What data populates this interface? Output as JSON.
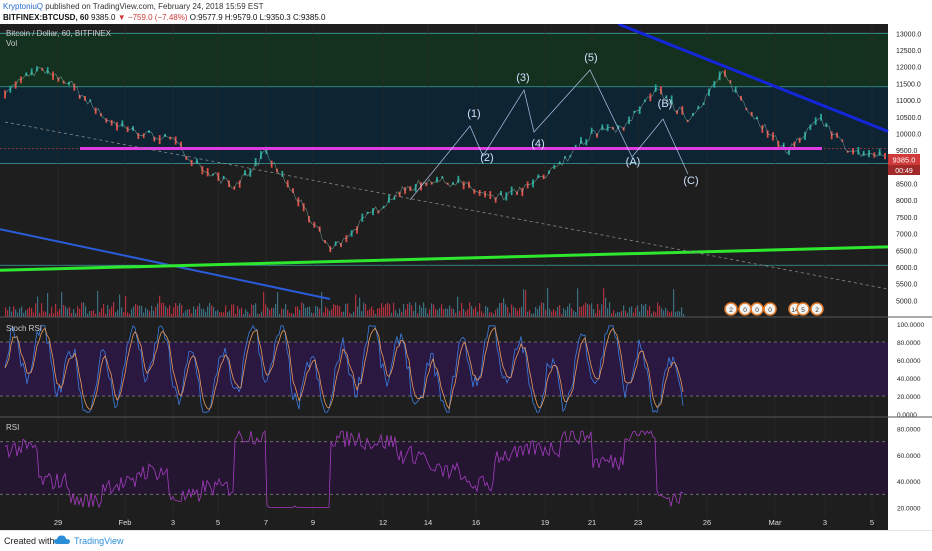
{
  "header": {
    "author": "KryptoniuQ",
    "published": "published on TradingView.com, February 24, 2018 15:59 EST",
    "symbol": "BITFINEX:BTCUSD, 60",
    "last": "9385.0",
    "change": "−759.0 (−7.48%)",
    "open": "O:9577.9",
    "high": "H:9579.0",
    "low": "L:9350.3",
    "close": "C:9385.0"
  },
  "footer": {
    "created_with": "Created with",
    "brand": "TradingView"
  },
  "colors": {
    "background": "#1e1e1e",
    "green_zone": "#14301e",
    "blue_zone": "#0e2433",
    "stoch_band": "#2b1840",
    "rsi_band": "#241630",
    "blue_trend": "#1426d9",
    "blue_trend_lower": "#2a5bd8",
    "green_trend": "#2ee82e",
    "magenta_line": "#e03be0",
    "price_label": "#d13a3a",
    "stoch_k": "#3b7de0",
    "stoch_d": "#e89a5a",
    "rsi_line": "#a33cc0"
  },
  "chart_data": [
    {
      "type": "line",
      "panel": "price",
      "title": "Bitcoin / Dollar, 60, BITFINEX",
      "subtitle": "Vol",
      "y_ticks": [
        5000,
        5500,
        6000,
        6500,
        7000,
        7500,
        8000,
        8500,
        9000,
        9500,
        10000,
        10500,
        11000,
        11500,
        12000,
        12500,
        13000
      ],
      "ylim": [
        4500,
        13100
      ],
      "x_ticks": [
        "29",
        "Feb",
        "3",
        "5",
        "7",
        "9",
        "12",
        "14",
        "16",
        "19",
        "21",
        "23",
        "26",
        "Mar",
        "3",
        "5"
      ],
      "x": [
        0,
        1,
        2,
        3,
        4,
        5,
        6,
        7,
        8,
        9,
        10,
        11,
        12,
        13,
        14,
        15,
        16,
        17,
        18,
        19,
        20,
        21,
        22,
        23,
        24,
        25,
        26,
        27
      ],
      "series": [
        {
          "values": [
            11300,
            11900,
            11500,
            10500,
            10000,
            9900,
            9000,
            8400,
            9400,
            8000,
            6500,
            7400,
            8200,
            8600,
            8500,
            8000,
            8400,
            9000,
            10000,
            10200,
            11300,
            10400,
            11800,
            10500,
            9500,
            10400,
            9385,
            9385
          ]
        }
      ],
      "current_price": "9385.0",
      "current_price_sub": "00:49",
      "wave_labels": [
        "(1)",
        "(2)",
        "(3)",
        "(4)",
        "(5)",
        "(A)",
        "(B)",
        "(C)"
      ],
      "horizontal_lines": [
        13000,
        11400,
        9550,
        9100,
        6050
      ],
      "magenta_level": 9550,
      "trendlines": [
        {
          "name": "blue-trendline",
          "from": {
            "x": 9,
            "y": 13100
          },
          "to": {
            "x": 27,
            "y": 10000
          }
        },
        {
          "name": "green-trendline",
          "from": {
            "x": 0,
            "y": 5900
          },
          "to": {
            "x": 27,
            "y": 6600
          }
        }
      ],
      "event_bubbles": [
        "2",
        "0",
        "0",
        "0",
        "14",
        "5",
        "2"
      ]
    },
    {
      "type": "line",
      "panel": "stoch",
      "title": "Stoch RSI",
      "y_ticks": [
        "100.0000",
        "80.0000",
        "60.0000",
        "40.0000",
        "20.0000",
        "0.0000"
      ],
      "ylim": [
        0,
        100
      ],
      "bands": [
        20,
        80
      ]
    },
    {
      "type": "line",
      "panel": "rsi",
      "title": "RSI",
      "y_ticks": [
        "80.0000",
        "60.0000",
        "40.0000",
        "20.0000"
      ],
      "ylim": [
        15,
        85
      ],
      "bands": [
        30,
        70
      ]
    }
  ]
}
